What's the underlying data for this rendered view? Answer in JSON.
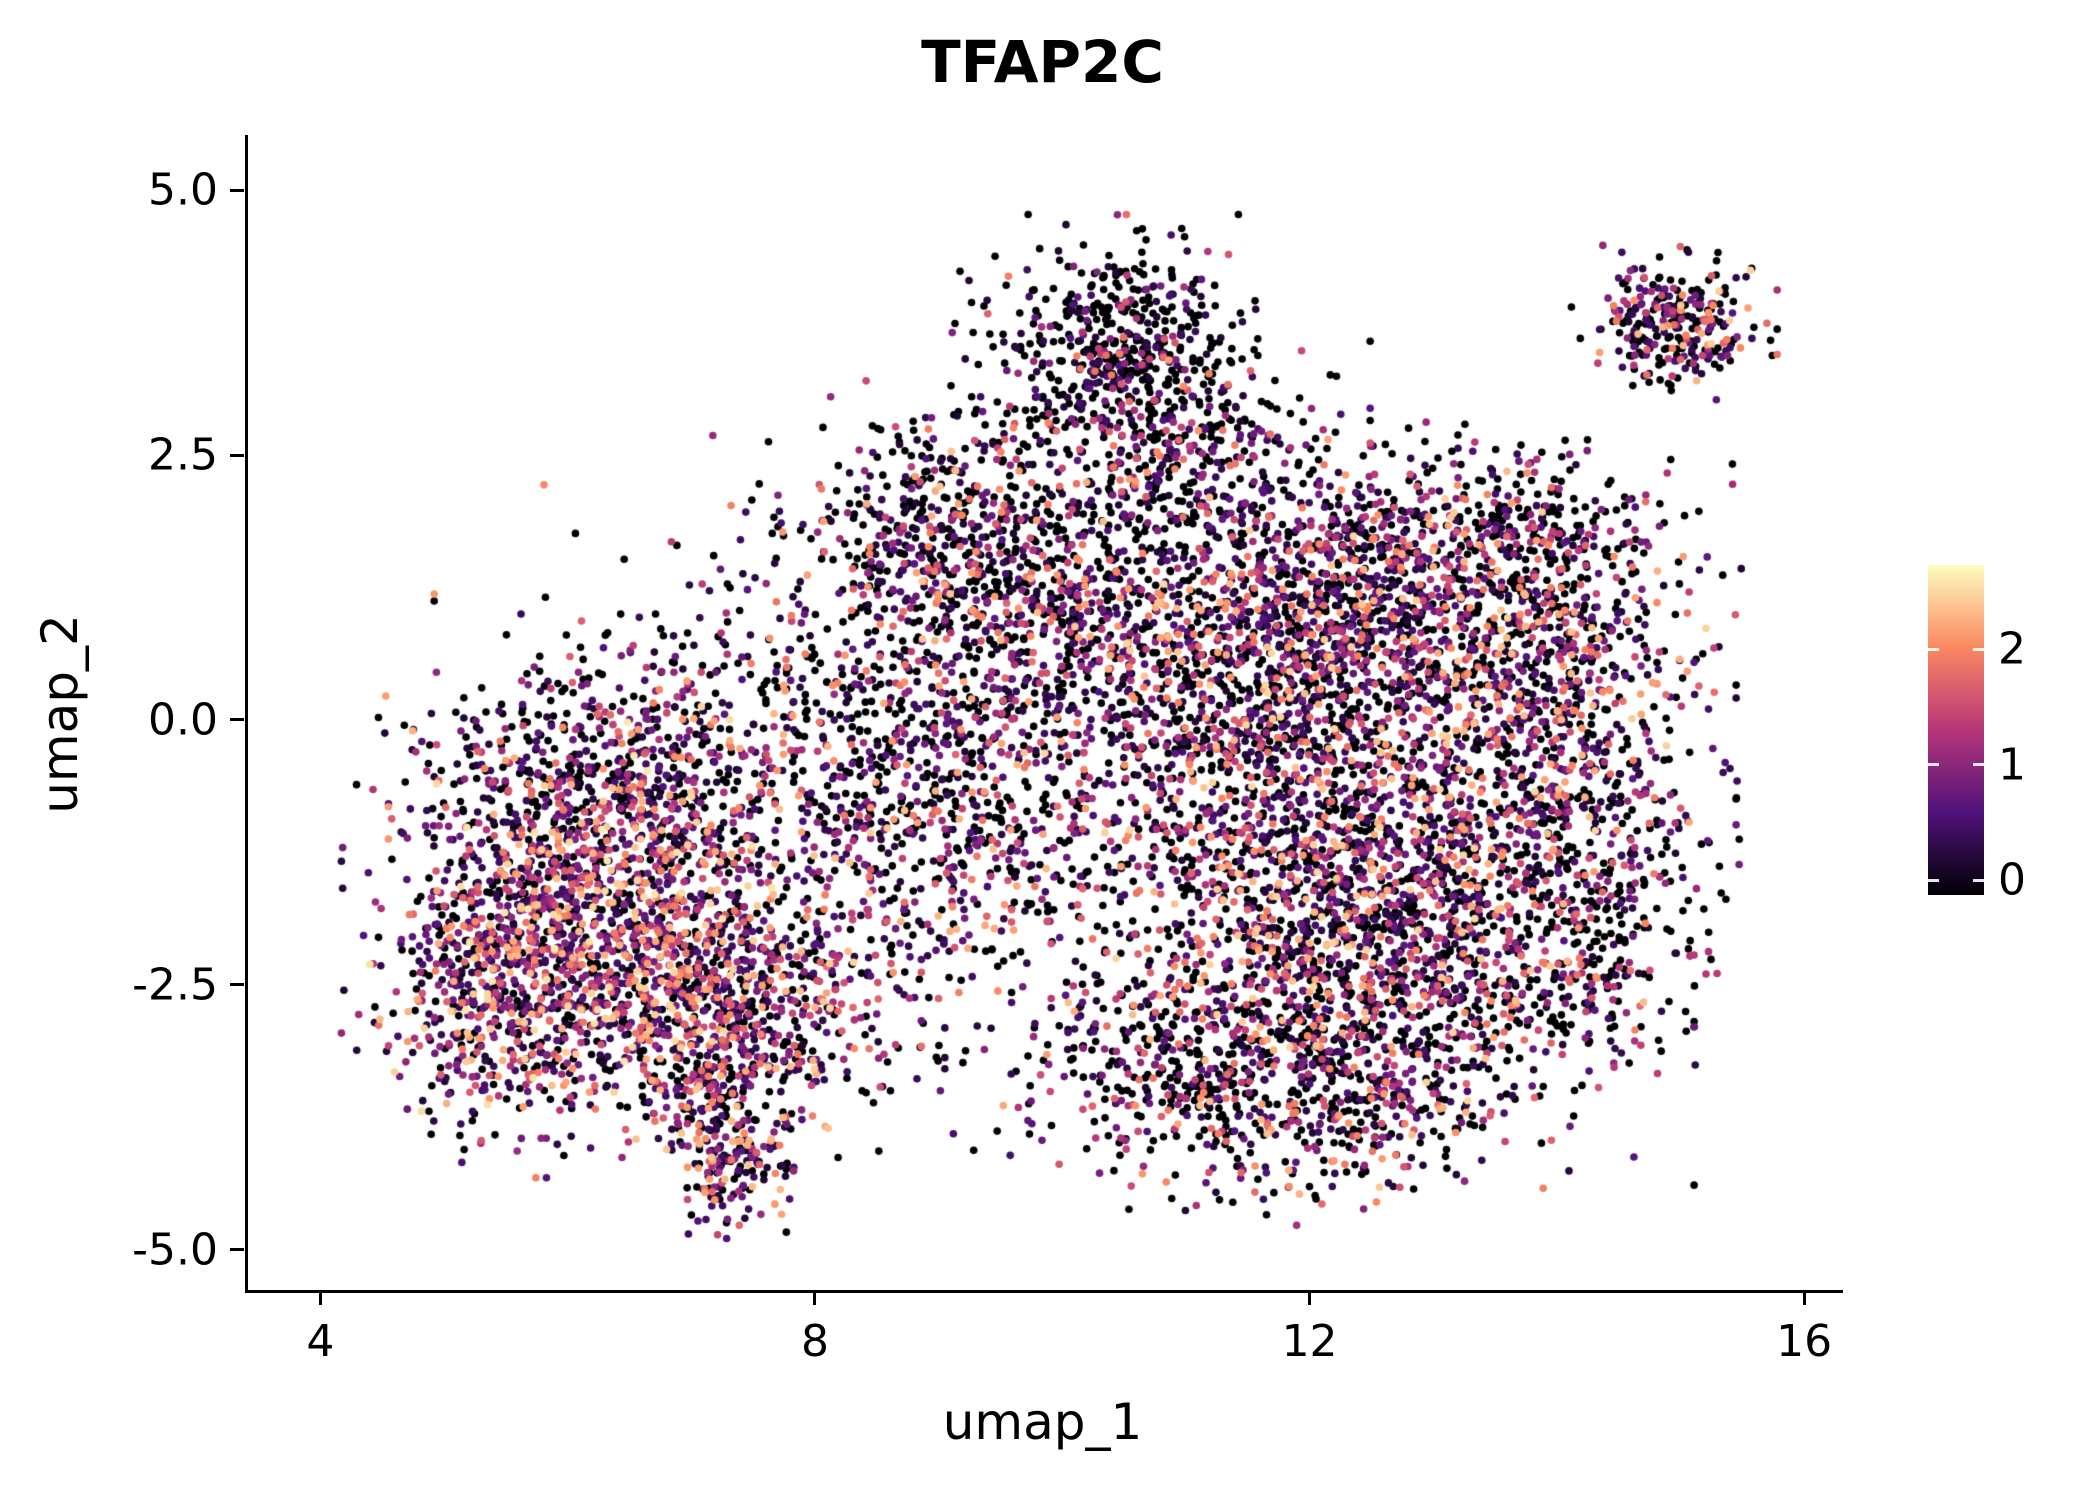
{
  "chart_data": {
    "type": "scatter",
    "title": "TFAP2C",
    "xlabel": "umap_1",
    "ylabel": "umap_2",
    "grid": false,
    "legend_position": "right",
    "xlim": [
      3.39,
      16.29
    ],
    "ylim": [
      -5.38,
      5.52
    ],
    "x_ticks": [
      {
        "value": 4,
        "label": "4"
      },
      {
        "value": 8,
        "label": "8"
      },
      {
        "value": 12,
        "label": "12"
      },
      {
        "value": 16,
        "label": "16"
      }
    ],
    "y_ticks": [
      {
        "value": 5.0,
        "label": "5.0"
      },
      {
        "value": 2.5,
        "label": "2.5"
      },
      {
        "value": 0.0,
        "label": "0.0"
      },
      {
        "value": -2.5,
        "label": "-2.5"
      },
      {
        "value": -5.0,
        "label": "-5.0"
      }
    ],
    "colorbar": {
      "vmin": 0,
      "vmax": 2.6,
      "ticks": [
        {
          "value": 2,
          "label": "2"
        },
        {
          "value": 1,
          "label": "1"
        },
        {
          "value": 0,
          "label": "0"
        }
      ]
    },
    "colormap": {
      "name": "magma",
      "stops": [
        [
          0.0,
          "#000004"
        ],
        [
          0.25,
          "#50127b"
        ],
        [
          0.5,
          "#b63679"
        ],
        [
          0.75,
          "#fb8861"
        ],
        [
          1.0,
          "#fcfdbf"
        ]
      ]
    },
    "point_radius_px": 3.8,
    "seed": 42,
    "clusters": [
      {
        "cx": 5.6,
        "cy": -2.5,
        "sx": 0.55,
        "sy": 0.7,
        "n": 800,
        "p0": 0.25,
        "hi": 2.5,
        "gamma": 1.5
      },
      {
        "cx": 6.5,
        "cy": -1.5,
        "sx": 0.75,
        "sy": 0.75,
        "n": 1000,
        "p0": 0.25,
        "hi": 2.5,
        "gamma": 1.5
      },
      {
        "cx": 7.3,
        "cy": -2.7,
        "sx": 0.6,
        "sy": 0.55,
        "n": 650,
        "p0": 0.27,
        "hi": 2.4,
        "gamma": 1.5
      },
      {
        "cx": 6.0,
        "cy": -0.5,
        "sx": 0.7,
        "sy": 0.5,
        "n": 300,
        "p0": 0.4,
        "hi": 2.2,
        "gamma": 1.7
      },
      {
        "cx": 7.5,
        "cy": 0.2,
        "sx": 0.9,
        "sy": 0.6,
        "n": 260,
        "p0": 0.5,
        "hi": 2.2,
        "gamma": 1.7
      },
      {
        "cx": 7.35,
        "cy": -4.2,
        "sx": 0.22,
        "sy": 0.3,
        "n": 150,
        "p0": 0.35,
        "hi": 2.3,
        "gamma": 1.6
      },
      {
        "cx": 7.15,
        "cy": -3.55,
        "sx": 0.3,
        "sy": 0.25,
        "n": 110,
        "p0": 0.35,
        "hi": 2.3,
        "gamma": 1.6
      },
      {
        "cx": 9.0,
        "cy": -0.9,
        "sx": 0.75,
        "sy": 1.0,
        "n": 650,
        "p0": 0.45,
        "hi": 2.3,
        "gamma": 1.7
      },
      {
        "cx": 9.7,
        "cy": 1.1,
        "sx": 0.75,
        "sy": 0.75,
        "n": 650,
        "p0": 0.45,
        "hi": 2.3,
        "gamma": 1.7
      },
      {
        "cx": 8.9,
        "cy": 1.9,
        "sx": 0.5,
        "sy": 0.5,
        "n": 280,
        "p0": 0.5,
        "hi": 2.2,
        "gamma": 1.7
      },
      {
        "cx": 10.4,
        "cy": 3.6,
        "sx": 0.5,
        "sy": 0.45,
        "n": 420,
        "p0": 0.68,
        "hi": 1.9,
        "gamma": 1.9
      },
      {
        "cx": 10.8,
        "cy": 2.6,
        "sx": 0.65,
        "sy": 0.5,
        "n": 420,
        "p0": 0.55,
        "hi": 2.1,
        "gamma": 1.8
      },
      {
        "cx": 11.5,
        "cy": 0.6,
        "sx": 0.85,
        "sy": 0.85,
        "n": 850,
        "p0": 0.4,
        "hi": 2.4,
        "gamma": 1.6
      },
      {
        "cx": 12.6,
        "cy": 1.1,
        "sx": 0.85,
        "sy": 0.65,
        "n": 750,
        "p0": 0.38,
        "hi": 2.4,
        "gamma": 1.6
      },
      {
        "cx": 11.8,
        "cy": -1.4,
        "sx": 0.85,
        "sy": 0.95,
        "n": 950,
        "p0": 0.38,
        "hi": 2.4,
        "gamma": 1.6
      },
      {
        "cx": 12.9,
        "cy": -2.2,
        "sx": 0.85,
        "sy": 0.85,
        "n": 950,
        "p0": 0.4,
        "hi": 2.4,
        "gamma": 1.6
      },
      {
        "cx": 13.5,
        "cy": -0.3,
        "sx": 0.75,
        "sy": 0.85,
        "n": 750,
        "p0": 0.38,
        "hi": 2.4,
        "gamma": 1.6
      },
      {
        "cx": 11.0,
        "cy": -3.2,
        "sx": 0.75,
        "sy": 0.55,
        "n": 420,
        "p0": 0.45,
        "hi": 2.3,
        "gamma": 1.7
      },
      {
        "cx": 12.2,
        "cy": -3.6,
        "sx": 0.65,
        "sy": 0.45,
        "n": 330,
        "p0": 0.5,
        "hi": 2.2,
        "gamma": 1.8
      },
      {
        "cx": 14.4,
        "cy": -1.5,
        "sx": 0.5,
        "sy": 0.85,
        "n": 300,
        "p0": 0.5,
        "hi": 2.2,
        "gamma": 1.8
      },
      {
        "cx": 14.2,
        "cy": 0.9,
        "sx": 0.5,
        "sy": 0.55,
        "n": 240,
        "p0": 0.45,
        "hi": 2.3,
        "gamma": 1.7
      },
      {
        "cx": 13.6,
        "cy": 1.9,
        "sx": 0.7,
        "sy": 0.35,
        "n": 220,
        "p0": 0.5,
        "hi": 2.2,
        "gamma": 1.8
      },
      {
        "cx": 14.95,
        "cy": 3.75,
        "sx": 0.32,
        "sy": 0.28,
        "n": 280,
        "p0": 0.45,
        "hi": 2.4,
        "gamma": 1.6
      },
      {
        "cx": 9.6,
        "cy": 0.0,
        "sx": 1.8,
        "sy": 1.4,
        "n": 350,
        "p0": 0.5,
        "hi": 2.2,
        "gamma": 1.8
      }
    ]
  },
  "figure": {
    "background": "#ffffff",
    "axis_color": "#000000"
  }
}
